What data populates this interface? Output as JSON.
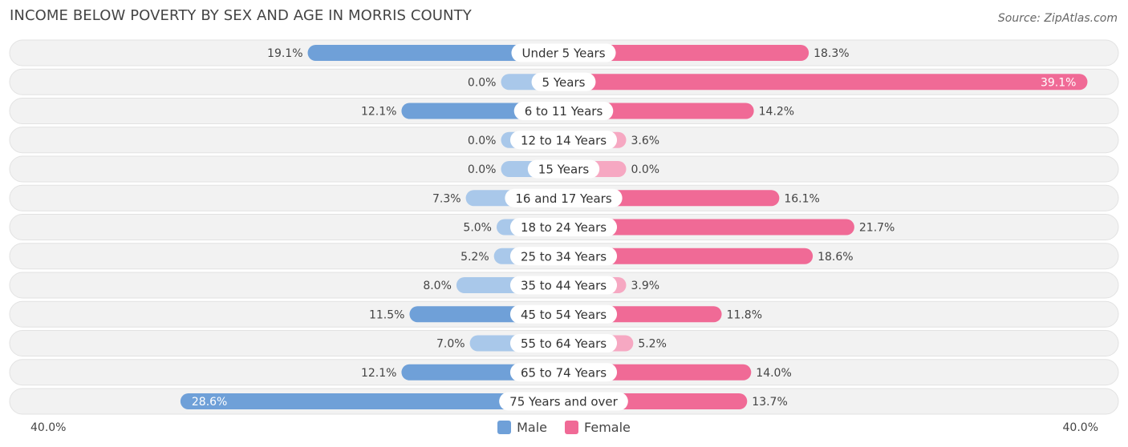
{
  "header": {
    "title": "INCOME BELOW POVERTY BY SEX AND AGE IN MORRIS COUNTY",
    "source": "Source: ZipAtlas.com"
  },
  "chart_data": {
    "type": "bar",
    "orientation": "horizontal-diverging",
    "title": "INCOME BELOW POVERTY BY SEX AND AGE IN MORRIS COUNTY",
    "categories": [
      "Under 5 Years",
      "5 Years",
      "6 to 11 Years",
      "12 to 14 Years",
      "15 Years",
      "16 and 17 Years",
      "18 to 24 Years",
      "25 to 34 Years",
      "35 to 44 Years",
      "45 to 54 Years",
      "55 to 64 Years",
      "65 to 74 Years",
      "75 Years and over"
    ],
    "series": [
      {
        "name": "Male",
        "values": [
          19.1,
          0.0,
          12.1,
          0.0,
          0.0,
          7.3,
          5.0,
          5.2,
          8.0,
          11.5,
          7.0,
          12.1,
          28.6
        ]
      },
      {
        "name": "Female",
        "values": [
          18.3,
          39.1,
          14.2,
          3.6,
          0.0,
          16.1,
          21.7,
          18.6,
          3.9,
          11.8,
          5.2,
          14.0,
          13.7
        ]
      }
    ],
    "value_labels": {
      "male": [
        "19.1%",
        "0.0%",
        "12.1%",
        "0.0%",
        "0.0%",
        "7.3%",
        "5.0%",
        "5.2%",
        "8.0%",
        "11.5%",
        "7.0%",
        "12.1%",
        "28.6%"
      ],
      "female": [
        "18.3%",
        "39.1%",
        "14.2%",
        "3.6%",
        "0.0%",
        "16.1%",
        "21.7%",
        "18.6%",
        "3.9%",
        "11.8%",
        "5.2%",
        "14.0%",
        "13.7%"
      ]
    },
    "xlim": [
      -40,
      40
    ],
    "axis_labels": {
      "left": "40.0%",
      "right": "40.0%"
    },
    "legend": {
      "position": "bottom-center",
      "entries": [
        "Male",
        "Female"
      ]
    },
    "colors": {
      "male": "#6fa0d8",
      "male_light": "#a9c8ea",
      "female": "#f06a96",
      "female_light": "#f6a8c2",
      "row_bg": "#f2f2f2",
      "row_border": "#e2e2e2"
    }
  }
}
